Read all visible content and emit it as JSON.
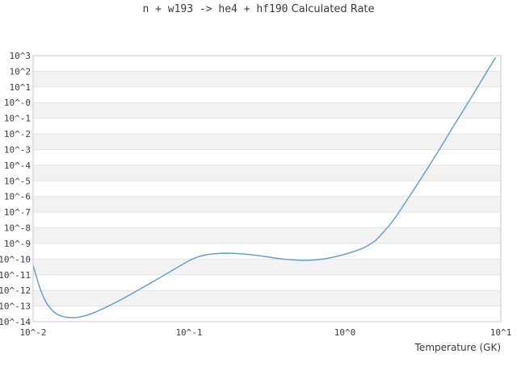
{
  "title": {
    "reaction": "n + w193 -> he4 + hf190",
    "suffix": " Calculated Rate"
  },
  "colors": {
    "line": "#5b9bd5",
    "band": "#f2f2f2",
    "grid": "#e3e3e3",
    "spine": "#c9c9c9",
    "text": "#3c3c3c",
    "background": "#ffffff"
  },
  "chart_data": {
    "type": "line",
    "title": "n + w193 -> he4 + hf190 Calculated Rate",
    "xlabel": "Temperature (GK)",
    "ylabel": "",
    "x_scale": "log10",
    "y_scale": "log10",
    "x_range_log10": [
      -2,
      1
    ],
    "y_range_log10": [
      3,
      -14
    ],
    "x_tick_log10": [
      -2,
      -1,
      0,
      1
    ],
    "x_tick_labels": [
      "10^-2",
      "10^-1",
      "10^0",
      "10^1"
    ],
    "y_tick_log10": [
      3,
      2,
      1,
      0,
      -1,
      -2,
      -3,
      -4,
      -5,
      -6,
      -7,
      -8,
      -9,
      -10,
      -11,
      -12,
      -13,
      -14
    ],
    "y_tick_labels": [
      "10^3",
      "10^2",
      "10^1",
      "10^-0",
      "10^-1",
      "10^-2",
      "10^-3",
      "10^-4",
      "10^-5",
      "10^-6",
      "10^-7",
      "10^-8",
      "10^-9",
      "10^-10",
      "10^-11",
      "10^-12",
      "10^-13",
      "10^-14"
    ],
    "grid": "horizontal-decade-bands",
    "legend": "none",
    "series": [
      {
        "name": "calculated-rate",
        "points_log10": [
          [
            -2.0,
            -10.4
          ],
          [
            -1.98,
            -11.1
          ],
          [
            -1.96,
            -11.75
          ],
          [
            -1.94,
            -12.28
          ],
          [
            -1.92,
            -12.7
          ],
          [
            -1.9,
            -13.02
          ],
          [
            -1.875,
            -13.3
          ],
          [
            -1.85,
            -13.5
          ],
          [
            -1.82,
            -13.64
          ],
          [
            -1.79,
            -13.71
          ],
          [
            -1.755,
            -13.74
          ],
          [
            -1.72,
            -13.73
          ],
          [
            -1.685,
            -13.67
          ],
          [
            -1.645,
            -13.55
          ],
          [
            -1.6,
            -13.38
          ],
          [
            -1.55,
            -13.16
          ],
          [
            -1.5,
            -12.92
          ],
          [
            -1.445,
            -12.64
          ],
          [
            -1.39,
            -12.34
          ],
          [
            -1.33,
            -12.0
          ],
          [
            -1.27,
            -11.66
          ],
          [
            -1.21,
            -11.32
          ],
          [
            -1.15,
            -10.97
          ],
          [
            -1.09,
            -10.62
          ],
          [
            -1.04,
            -10.33
          ],
          [
            -1.0,
            -10.1
          ],
          [
            -0.96,
            -9.92
          ],
          [
            -0.92,
            -9.79
          ],
          [
            -0.88,
            -9.71
          ],
          [
            -0.84,
            -9.66
          ],
          [
            -0.8,
            -9.63
          ],
          [
            -0.76,
            -9.62
          ],
          [
            -0.72,
            -9.63
          ],
          [
            -0.68,
            -9.65
          ],
          [
            -0.63,
            -9.69
          ],
          [
            -0.57,
            -9.76
          ],
          [
            -0.51,
            -9.84
          ],
          [
            -0.45,
            -9.93
          ],
          [
            -0.39,
            -10.0
          ],
          [
            -0.33,
            -10.05
          ],
          [
            -0.28,
            -10.08
          ],
          [
            -0.23,
            -10.08
          ],
          [
            -0.18,
            -10.04
          ],
          [
            -0.13,
            -9.98
          ],
          [
            -0.08,
            -9.89
          ],
          [
            -0.03,
            -9.77
          ],
          [
            0.02,
            -9.63
          ],
          [
            0.07,
            -9.47
          ],
          [
            0.12,
            -9.28
          ],
          [
            0.16,
            -9.06
          ],
          [
            0.2,
            -8.78
          ],
          [
            0.245,
            -8.3
          ],
          [
            0.29,
            -7.78
          ],
          [
            0.33,
            -7.25
          ],
          [
            0.38,
            -6.5
          ],
          [
            0.43,
            -5.75
          ],
          [
            0.48,
            -4.98
          ],
          [
            0.53,
            -4.2
          ],
          [
            0.58,
            -3.4
          ],
          [
            0.63,
            -2.6
          ],
          [
            0.69,
            -1.6
          ],
          [
            0.76,
            -0.49
          ],
          [
            0.83,
            0.65
          ],
          [
            0.9,
            1.8
          ],
          [
            0.965,
            2.86
          ]
        ]
      }
    ]
  }
}
